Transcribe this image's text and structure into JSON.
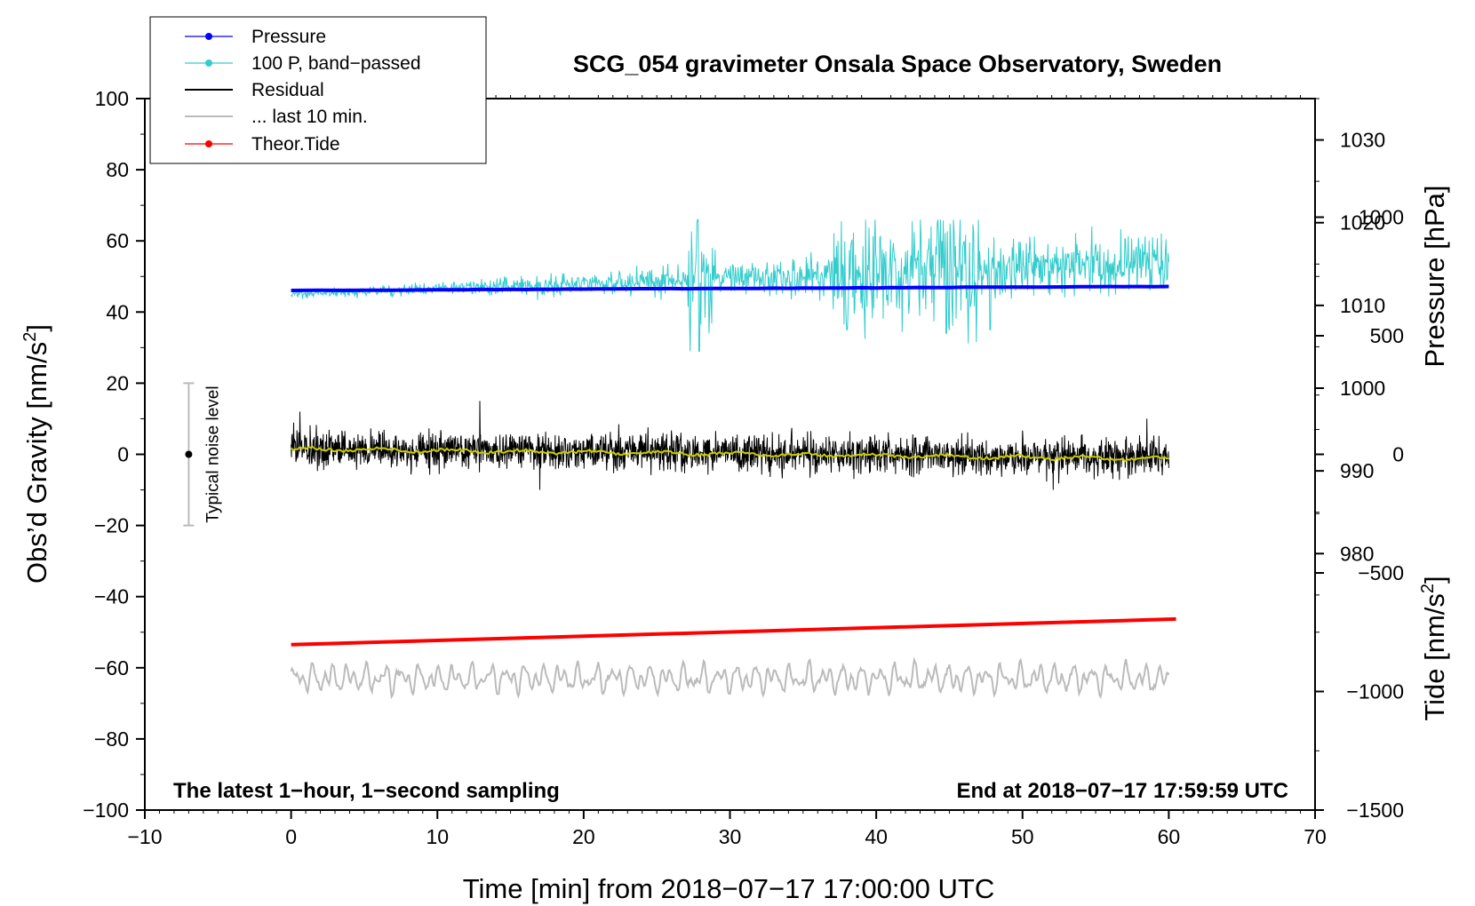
{
  "chart_data": {
    "type": "line",
    "title": "SCG_054 gravimeter Onsala Space Observatory, Sweden",
    "xlabel": "Time [min] from 2018−07−17 17:00:00 UTC",
    "ylabel": "Obs’d Gravity [nm/s",
    "ylabel_sup": "2",
    "ylabel_end": "]",
    "xlim": [
      -10,
      70
    ],
    "ylim": [
      -100,
      100
    ],
    "x_ticks": [
      "−10",
      "0",
      "10",
      "20",
      "30",
      "40",
      "50",
      "60",
      "70"
    ],
    "y_ticks": [
      "−100",
      "−80",
      "−60",
      "−40",
      "−20",
      "0",
      "20",
      "40",
      "60",
      "80",
      "100"
    ],
    "pressure_axis": {
      "label": "Pressure [hPa]",
      "range": [
        949,
        1035
      ],
      "ticks": [
        "980",
        "990",
        "1000",
        "1010",
        "1020",
        "1030"
      ]
    },
    "tide_axis": {
      "label": "Tide [nm/s",
      "label_sup": "2",
      "label_end": "]",
      "range": [
        -1500,
        1500
      ],
      "ticks": [
        "−1500",
        "−1000",
        "−500",
        "0",
        "500",
        "1000"
      ]
    },
    "legend": [
      {
        "label": "Pressure",
        "color": "#0000ff",
        "marker": true
      },
      {
        "label": "100 P, band−passed",
        "color": "#33cccc",
        "marker": true
      },
      {
        "label": "Residual",
        "color": "#000000",
        "marker": false
      },
      {
        "label": "... last 10 min.",
        "color": "#bbbbbb",
        "marker": false
      },
      {
        "label": "Theor.Tide",
        "color": "#ff0000",
        "marker": true
      }
    ],
    "noise_bar": {
      "label": "Typical noise level",
      "x": -7,
      "center": 0,
      "range": [
        -20,
        20
      ]
    },
    "annotations": {
      "left": "The latest 1−hour, 1−second sampling",
      "right": "End at 2018−07−17 17:59:59 UTC"
    },
    "series": [
      {
        "name": "Pressure",
        "color": "#0000ff",
        "axis": "pressure",
        "start": [
          0,
          1011.8
        ],
        "end": [
          60,
          1012.3
        ]
      },
      {
        "name": "100 P, band−passed",
        "color": "#33cccc",
        "axis": "gravity",
        "start_mean": 45,
        "end_mean": 54,
        "max": 66,
        "min": 29
      },
      {
        "name": "Residual",
        "color": "#000000",
        "axis": "gravity",
        "mean": 0,
        "amplitude": 5,
        "max": 15,
        "min": -10
      },
      {
        "name": "Residual smoothed",
        "color": "#cccc00",
        "axis": "gravity",
        "mean": 0
      },
      {
        "name": "... last 10 min.",
        "color": "#bbbbbb",
        "axis": "gravity",
        "mean": -63,
        "min": -71,
        "max": -52
      },
      {
        "name": "Theor.Tide",
        "color": "#ff0000",
        "axis": "gravity",
        "start": [
          0,
          -53.5
        ],
        "end": [
          60.5,
          -46.3
        ]
      }
    ]
  }
}
